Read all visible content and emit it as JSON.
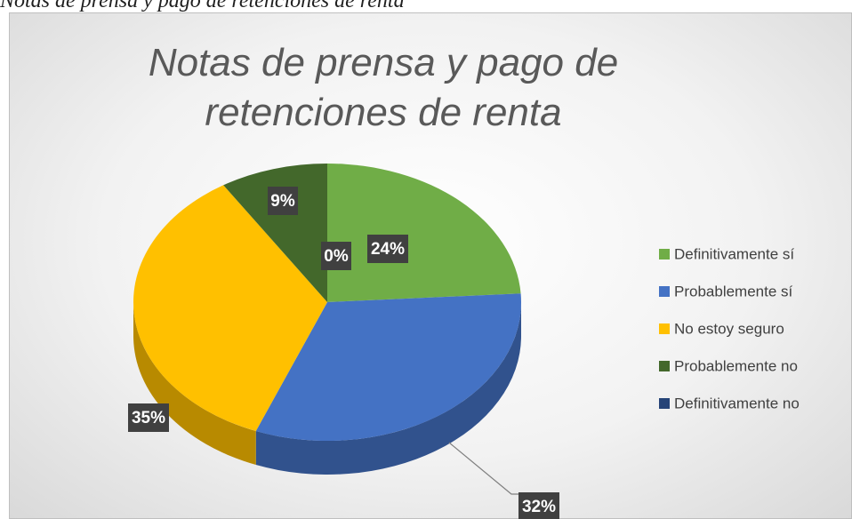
{
  "caption": "Notas de prensa y pago de retenciones de renta",
  "chart_data": {
    "type": "pie",
    "title": "Notas de prensa y pago de retenciones de renta",
    "categories": [
      "Definitivamente sí",
      "Probablemente sí",
      "No estoy seguro",
      "Probablemente no",
      "Definitivamente no"
    ],
    "values": [
      24,
      32,
      35,
      9,
      0
    ],
    "value_labels": [
      "24%",
      "32%",
      "35%",
      "9%",
      "0%"
    ],
    "colors": [
      "#70ad47",
      "#4472c4",
      "#ffc000",
      "#43682b",
      "#264478"
    ],
    "legend": "right"
  }
}
